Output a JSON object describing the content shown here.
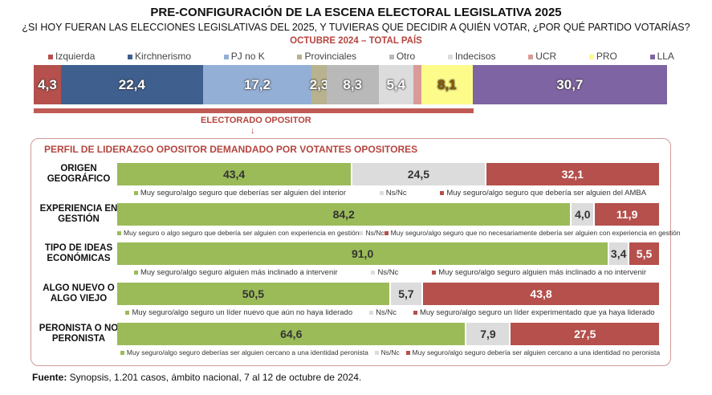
{
  "title": "PRE-CONFIGURACIÓN DE LA ESCENA ELECTORAL LEGISLATIVA 2025",
  "subtitle": "¿SI HOY FUERAN LAS ELECCIONES LEGISLATIVAS DEL 2025, Y TUVIERAS QUE DECIDIR A QUIÉN VOTAR, ¿POR QUÉ PARTIDO VOTARÍAS?",
  "period": "OCTUBRE 2024 – TOTAL PAÍS",
  "opositor_label": "ELECTORADO OPOSITOR",
  "arrow": "↓",
  "box_title": "PERFIL DE LIDERAZGO OPOSITOR DEMANDADO POR VOTANTES OPOSITORES",
  "footer_label": "Fuente:",
  "footer_text": " Synopsis, 1.201 casos, ámbito nacional, 7 al 12 de octubre de 2024.",
  "chart_data": [
    {
      "type": "bar",
      "orientation": "horizontal-stacked",
      "categories": [
        "Izquierda",
        "Kirchnerismo",
        "PJ no K",
        "Provinciales",
        "Otro",
        "Indecisos",
        "UCR",
        "PRO",
        "LLA"
      ],
      "values": [
        4.3,
        22.4,
        17.2,
        2.3,
        8.3,
        5.4,
        1.3,
        8.1,
        30.7
      ],
      "labels": [
        "4,3",
        "22,4",
        "17,2",
        "2,3",
        "8,3",
        "5,4",
        "",
        "8,1",
        "30,7"
      ],
      "colors": [
        "#b5504c",
        "#3f5f8e",
        "#93afd6",
        "#b8b28e",
        "#b9b9b9",
        "#dcdcdc",
        "#d99a98",
        "#fdfb8a",
        "#7f64a3"
      ],
      "legend_placement": "top",
      "opositor_share": 69.4
    },
    {
      "type": "bar",
      "orientation": "horizontal-stacked",
      "colors": [
        "#9bbb59",
        "#dcdcdc",
        "#b5504c"
      ],
      "rows": [
        {
          "label": "ORIGEN GEOGRÁFICO",
          "values": [
            43.4,
            24.5,
            32.1
          ],
          "labels": [
            "43,4",
            "24,5",
            "32,1"
          ],
          "legend": [
            "Muy seguro/algo seguro que deberías ser alguien del interior",
            "Ns/Nc",
            "Muy seguro/algo seguro que debería ser alguien del AMBA"
          ]
        },
        {
          "label": "EXPERIENCIA EN GESTIÓN",
          "values": [
            84.2,
            4.0,
            11.9
          ],
          "labels": [
            "84,2",
            "4,0",
            "11,9"
          ],
          "legend": [
            "Muy seguro o algo seguro que debería ser alguien con experiencia en gestión",
            "Ns/Nc",
            "Muy seguro/algo seguro que no necesariamente debería ser alguien con experiencia en gestión"
          ]
        },
        {
          "label": "TIPO DE IDEAS ECONÓMICAS",
          "values": [
            91.0,
            3.4,
            5.5
          ],
          "labels": [
            "91,0",
            "3,4",
            "5,5"
          ],
          "legend": [
            "Muy seguro/algo seguro alguien más inclinado a intervenir",
            "Ns/Nc",
            "Muy seguro/algo seguro alguien más inclinado a no intervenir"
          ]
        },
        {
          "label": "ALGO NUEVO O ALGO VIEJO",
          "values": [
            50.5,
            5.7,
            43.8
          ],
          "labels": [
            "50,5",
            "5,7",
            "43,8"
          ],
          "legend": [
            "Muy seguro/algo seguro un líder nuevo que aún no haya liderado",
            "Ns/Nc",
            "Muy seguro/algo seguro un líder experimentado que ya haya liderado"
          ]
        },
        {
          "label": "PERONISTA O NO PERONISTA",
          "values": [
            64.6,
            7.9,
            27.5
          ],
          "labels": [
            "64,6",
            "7,9",
            "27,5"
          ],
          "legend": [
            "Muy seguro/algo seguro deberías ser alguien cercano a una identidad peronista",
            "Ns/Nc",
            "Muy seguro/algo seguro debería ser alguien cercano a una identidad no peronista"
          ]
        }
      ]
    }
  ]
}
